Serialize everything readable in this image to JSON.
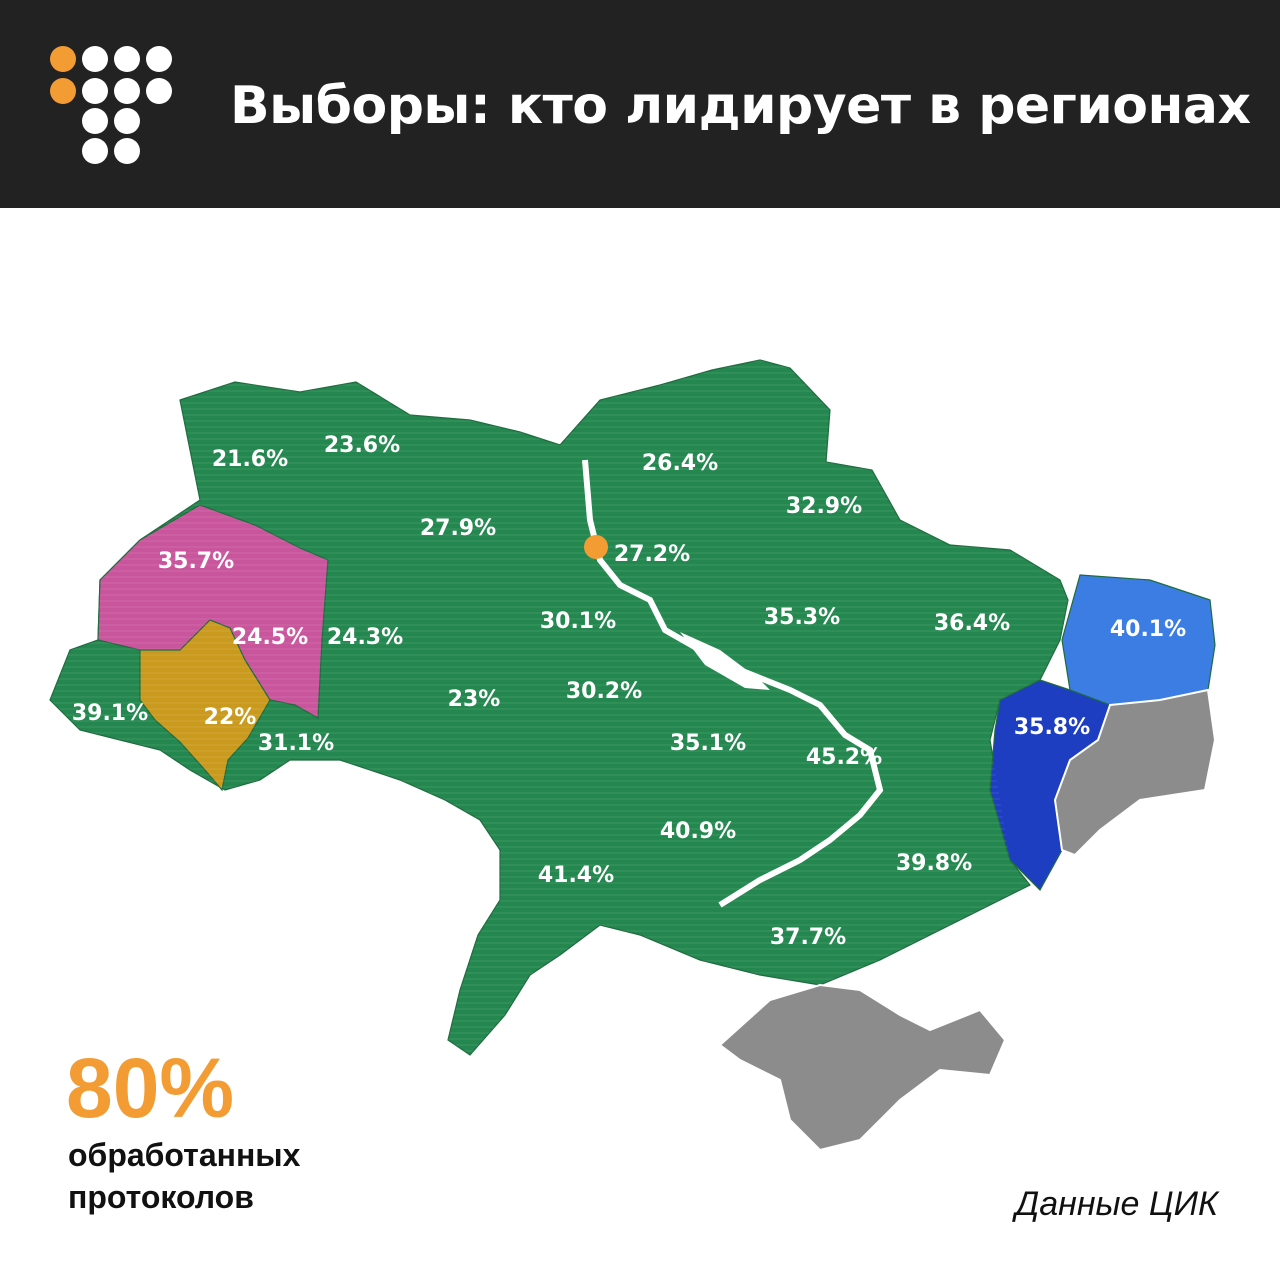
{
  "header": {
    "title": "Выборы: кто лидирует в регионах",
    "logo_icon": "dot-grid-logo",
    "background_color": "#222222",
    "accent_color": "#f39c34"
  },
  "map": {
    "colors": {
      "leader_green": "#23874f",
      "leader_magenta": "#c9559c",
      "leader_gold": "#c99a1e",
      "leader_light_blue": "#3b7de2",
      "leader_dark_blue": "#1e3ec2",
      "no_data": "#8c8c8c",
      "capital_marker": "#f39c34"
    },
    "regions": [
      {
        "label": "21.6%",
        "color": "leader_green"
      },
      {
        "label": "23.6%",
        "color": "leader_green"
      },
      {
        "label": "26.4%",
        "color": "leader_green"
      },
      {
        "label": "32.9%",
        "color": "leader_green"
      },
      {
        "label": "27.9%",
        "color": "leader_green"
      },
      {
        "label": "27.2%",
        "color": "leader_green"
      },
      {
        "label": "35.7%",
        "color": "leader_magenta"
      },
      {
        "label": "24.5%",
        "color": "leader_magenta"
      },
      {
        "label": "24.3%",
        "color": "leader_green"
      },
      {
        "label": "30.1%",
        "color": "leader_green"
      },
      {
        "label": "35.3%",
        "color": "leader_green"
      },
      {
        "label": "36.4%",
        "color": "leader_green"
      },
      {
        "label": "40.1%",
        "color": "leader_light_blue"
      },
      {
        "label": "39.1%",
        "color": "leader_green"
      },
      {
        "label": "22%",
        "color": "leader_gold"
      },
      {
        "label": "31.1%",
        "color": "leader_green"
      },
      {
        "label": "23%",
        "color": "leader_green"
      },
      {
        "label": "30.2%",
        "color": "leader_green"
      },
      {
        "label": "35.1%",
        "color": "leader_green"
      },
      {
        "label": "45.2%",
        "color": "leader_green"
      },
      {
        "label": "35.8%",
        "color": "leader_dark_blue"
      },
      {
        "label": "40.9%",
        "color": "leader_green"
      },
      {
        "label": "41.4%",
        "color": "leader_green"
      },
      {
        "label": "39.8%",
        "color": "leader_green"
      },
      {
        "label": "37.7%",
        "color": "leader_green"
      }
    ]
  },
  "stats": {
    "value": "80%",
    "caption_line1": "обработанных",
    "caption_line2": "протоколов"
  },
  "source": "Данные ЦИК"
}
